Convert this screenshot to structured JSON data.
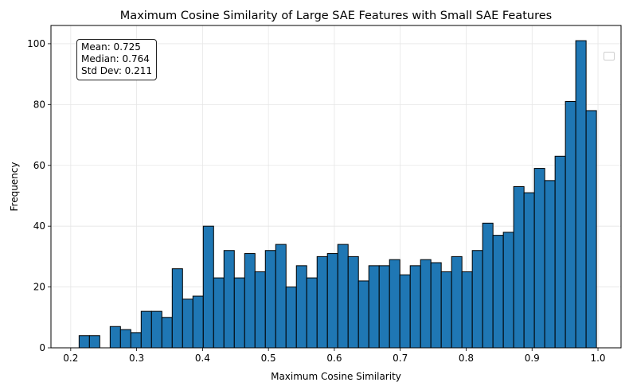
{
  "chart_data": {
    "type": "bar",
    "subtype": "histogram",
    "title": "Maximum Cosine Similarity of Large SAE Features with Small SAE Features",
    "xlabel": "Maximum Cosine Similarity",
    "ylabel": "Frequency",
    "xlim": [
      0.17,
      1.035
    ],
    "ylim": [
      0,
      106
    ],
    "xticks": [
      0.2,
      0.3,
      0.4,
      0.5,
      0.6,
      0.7,
      0.8,
      0.9,
      1.0
    ],
    "xtick_labels": [
      "0.2",
      "0.3",
      "0.4",
      "0.5",
      "0.6",
      "0.7",
      "0.8",
      "0.9",
      "1.0"
    ],
    "yticks": [
      0,
      20,
      40,
      60,
      80,
      100
    ],
    "ytick_labels": [
      "0",
      "20",
      "40",
      "60",
      "80",
      "100"
    ],
    "grid": true,
    "bin_start": 0.2127,
    "bin_width": 0.0157,
    "values": [
      4,
      4,
      0,
      7,
      6,
      5,
      12,
      12,
      10,
      26,
      16,
      17,
      40,
      23,
      32,
      23,
      31,
      25,
      32,
      34,
      20,
      27,
      23,
      30,
      31,
      34,
      30,
      22,
      27,
      27,
      29,
      24,
      27,
      29,
      28,
      25,
      30,
      25,
      32,
      41,
      37,
      38,
      53,
      51,
      59,
      55,
      63,
      81,
      101,
      78
    ],
    "color": "#1f77b4",
    "edge_color": "#000000",
    "stats_box": {
      "position": "top-left",
      "lines": [
        "Mean: 0.725",
        "Median: 0.764",
        "Std Dev: 0.211"
      ]
    },
    "legend": {
      "position": "top-right",
      "entries": []
    }
  }
}
